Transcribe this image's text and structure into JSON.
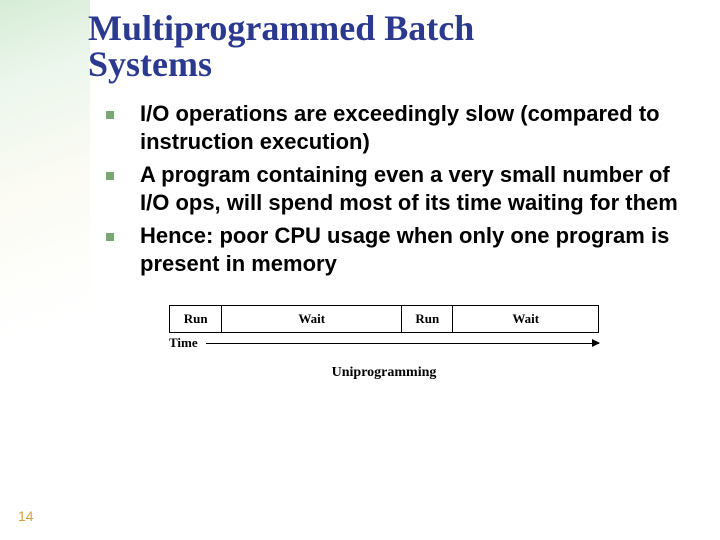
{
  "title": {
    "line1": "Multiprogrammed Batch",
    "line2": "Systems",
    "color": "#2b3a8f",
    "fontsize": 36
  },
  "bullets": {
    "items": [
      "I/O operations are exceedingly slow (compared to instruction execution)",
      "A program containing even a very small number of I/O ops, will spend most of its time waiting for them",
      "Hence: poor CPU usage when only one program is present in memory"
    ],
    "fontsize": 22,
    "text_color": "#000000",
    "marker_color": "#7aa773"
  },
  "figure": {
    "segments": [
      {
        "label": "Run",
        "width_pct": 12
      },
      {
        "label": "Wait",
        "width_pct": 42
      },
      {
        "label": "Run",
        "width_pct": 12
      },
      {
        "label": "Wait",
        "width_pct": 34
      }
    ],
    "seg_fontsize": 13,
    "axis_label": "Time",
    "axis_fontsize": 13,
    "caption": "Uniprogramming",
    "caption_fontsize": 14
  },
  "page_number": {
    "value": "14",
    "color": "#d9a23a",
    "fontsize": 14
  },
  "background_color": "#ffffff"
}
